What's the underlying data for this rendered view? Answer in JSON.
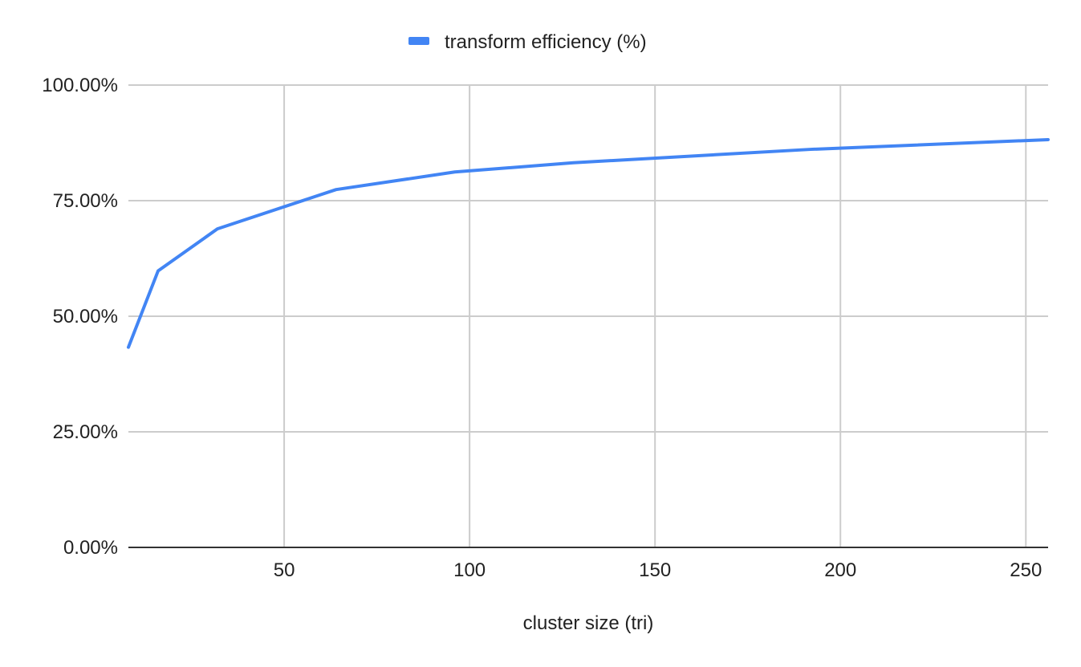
{
  "chart_data": {
    "type": "line",
    "title": "",
    "xlabel": "cluster size (tri)",
    "ylabel": "",
    "xlim": [
      8,
      256
    ],
    "ylim": [
      0,
      100
    ],
    "x_ticks": [
      50,
      100,
      150,
      200,
      250
    ],
    "x_tick_labels": [
      "50",
      "100",
      "150",
      "200",
      "250"
    ],
    "y_ticks": [
      0,
      25,
      50,
      75,
      100
    ],
    "y_tick_labels": [
      "0.00%",
      "25.00%",
      "50.00%",
      "75.00%",
      "100.00%"
    ],
    "grid": true,
    "legend_position": "top-center",
    "series": [
      {
        "name": "transform efficiency (%)",
        "color": "#4285f4",
        "x": [
          8,
          16,
          32,
          64,
          96,
          128,
          192,
          256
        ],
        "values": [
          43.3,
          59.8,
          68.9,
          77.4,
          81.2,
          83.2,
          86.1,
          88.2
        ]
      }
    ]
  }
}
